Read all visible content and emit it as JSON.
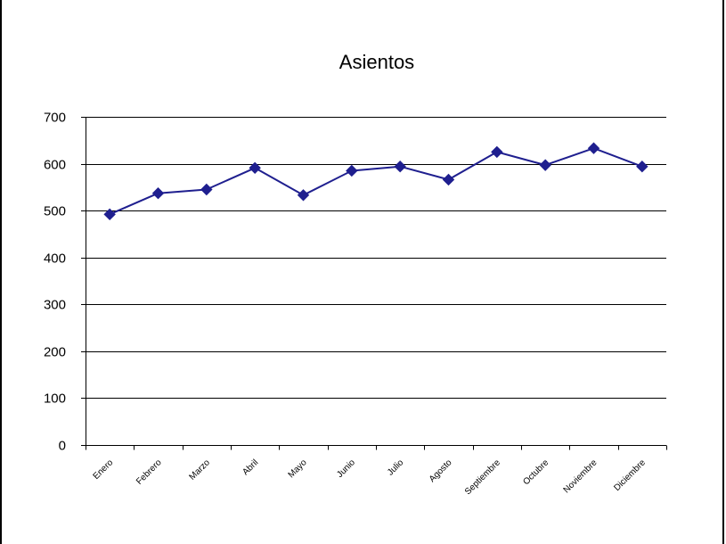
{
  "chart_data": {
    "type": "line",
    "title": "Asientos",
    "xlabel": "",
    "ylabel": "",
    "categories": [
      "Enero",
      "Febrero",
      "Marzo",
      "Abril",
      "Mayo",
      "Junio",
      "Julio",
      "Agosto",
      "Septiembre",
      "Octubre",
      "Noviembre",
      "Diciembre"
    ],
    "series": [
      {
        "values": [
          492,
          537,
          545,
          591,
          533,
          585,
          594,
          566,
          625,
          597,
          633,
          594
        ],
        "color": "#1f1f8f"
      }
    ],
    "ylim": [
      0,
      700
    ],
    "yticks": [
      0,
      100,
      200,
      300,
      400,
      500,
      600,
      700
    ],
    "grid": true,
    "legend": "none",
    "marker": "diamond"
  }
}
